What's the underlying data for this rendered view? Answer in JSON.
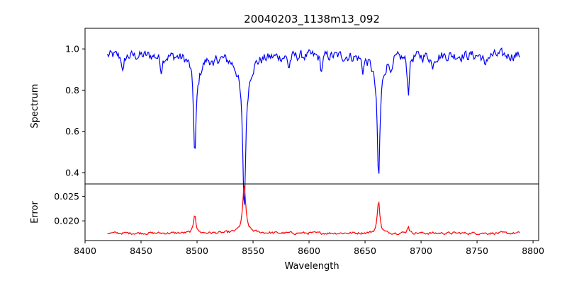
{
  "chart_data": {
    "title": "20040203_1138m13_092",
    "xlabel": "Wavelength",
    "xlim": [
      8400,
      8805
    ],
    "xticks": [
      8400,
      8450,
      8500,
      8550,
      8600,
      8650,
      8700,
      8750,
      8800
    ],
    "x_range": [
      8420,
      8788
    ],
    "panels": [
      {
        "name": "spectrum",
        "type": "line",
        "ylabel": "Spectrum",
        "color": "#0000ff",
        "ylim": [
          0.345,
          1.1
        ],
        "yticks": [
          0.4,
          0.6,
          0.8,
          1.0
        ],
        "baseline": 0.97,
        "noise": 0.04,
        "features": [
          {
            "center": 8498.0,
            "depth": 0.43,
            "width": 1.3
          },
          {
            "center": 8500.5,
            "depth": 0.08,
            "width": 4.0
          },
          {
            "center": 8542.1,
            "depth": 0.59,
            "width": 1.4
          },
          {
            "center": 8542.1,
            "depth": 0.16,
            "width": 5.0
          },
          {
            "center": 8662.1,
            "depth": 0.49,
            "width": 1.3
          },
          {
            "center": 8662.1,
            "depth": 0.12,
            "width": 4.5
          },
          {
            "center": 8688.6,
            "depth": 0.18,
            "width": 1.0
          },
          {
            "center": 8434.0,
            "depth": 0.09,
            "width": 1.0
          },
          {
            "center": 8468.0,
            "depth": 0.07,
            "width": 1.0
          },
          {
            "center": 8514.7,
            "depth": 0.06,
            "width": 1.0
          },
          {
            "center": 8582.0,
            "depth": 0.06,
            "width": 1.0
          },
          {
            "center": 8611.0,
            "depth": 0.08,
            "width": 1.0
          },
          {
            "center": 8648.0,
            "depth": 0.06,
            "width": 1.0
          },
          {
            "center": 8674.0,
            "depth": 0.07,
            "width": 1.0
          },
          {
            "center": 8710.0,
            "depth": 0.06,
            "width": 1.0
          },
          {
            "center": 8757.0,
            "depth": 0.07,
            "width": 1.0
          }
        ]
      },
      {
        "name": "error",
        "type": "line",
        "ylabel": "Error",
        "color": "#ff0000",
        "ylim": [
          0.016,
          0.0275
        ],
        "yticks": [
          0.02,
          0.025
        ],
        "ytick_labels": [
          "0.020",
          "0.025"
        ],
        "baseline": 0.0175,
        "noise": 0.0004,
        "features": [
          {
            "center": 8498.0,
            "height": 0.004,
            "width": 1.2
          },
          {
            "center": 8542.1,
            "height": 0.0093,
            "width": 1.4
          },
          {
            "center": 8542.1,
            "height": 0.0008,
            "width": 6.0
          },
          {
            "center": 8662.1,
            "height": 0.0068,
            "width": 1.3
          },
          {
            "center": 8688.6,
            "height": 0.0015,
            "width": 1.0
          }
        ]
      }
    ]
  }
}
